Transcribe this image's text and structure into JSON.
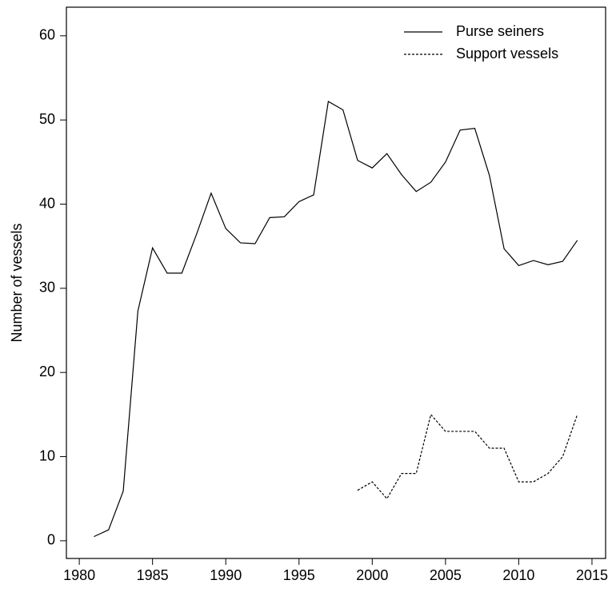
{
  "chart_data": {
    "type": "line",
    "y_label": "Number of vessels",
    "x": [
      1981,
      1982,
      1983,
      1984,
      1985,
      1986,
      1987,
      1988,
      1989,
      1990,
      1991,
      1992,
      1993,
      1994,
      1995,
      1996,
      1997,
      1998,
      1999,
      2000,
      2001,
      2002,
      2003,
      2004,
      2005,
      2006,
      2007,
      2008,
      2009,
      2010,
      2011,
      2012,
      2013,
      2014
    ],
    "series": [
      {
        "name": "Purse seiners",
        "color": "#000000",
        "dash": false,
        "values": [
          0.5,
          1.3,
          5.9,
          27.3,
          34.8,
          31.8,
          31.8,
          36.4,
          41.3,
          37.1,
          35.4,
          35.3,
          38.4,
          38.5,
          40.3,
          41.1,
          52.2,
          51.2,
          45.2,
          44.3,
          46.0,
          43.5,
          41.5,
          42.6,
          45.0,
          48.8,
          49.0,
          43.4,
          34.7,
          32.7,
          33.3,
          32.8,
          33.2,
          35.7
        ]
      },
      {
        "name": "Support vessels",
        "color": "#000000",
        "dash": true,
        "values": [
          null,
          null,
          null,
          null,
          null,
          null,
          null,
          null,
          null,
          null,
          null,
          null,
          null,
          null,
          null,
          null,
          null,
          null,
          6,
          7,
          5,
          8,
          8,
          15,
          13,
          13,
          13,
          11,
          11,
          7,
          7,
          8,
          10,
          15
        ]
      }
    ],
    "xlim": [
      1979.12,
      2015.93
    ],
    "xticks": [
      1980,
      1985,
      1990,
      1995,
      2000,
      2005,
      2010,
      2015
    ],
    "ylim": [
      -2.1,
      63.4
    ],
    "yticks": [
      0,
      10,
      20,
      30,
      40,
      50,
      60
    ],
    "legend": "top-right"
  }
}
